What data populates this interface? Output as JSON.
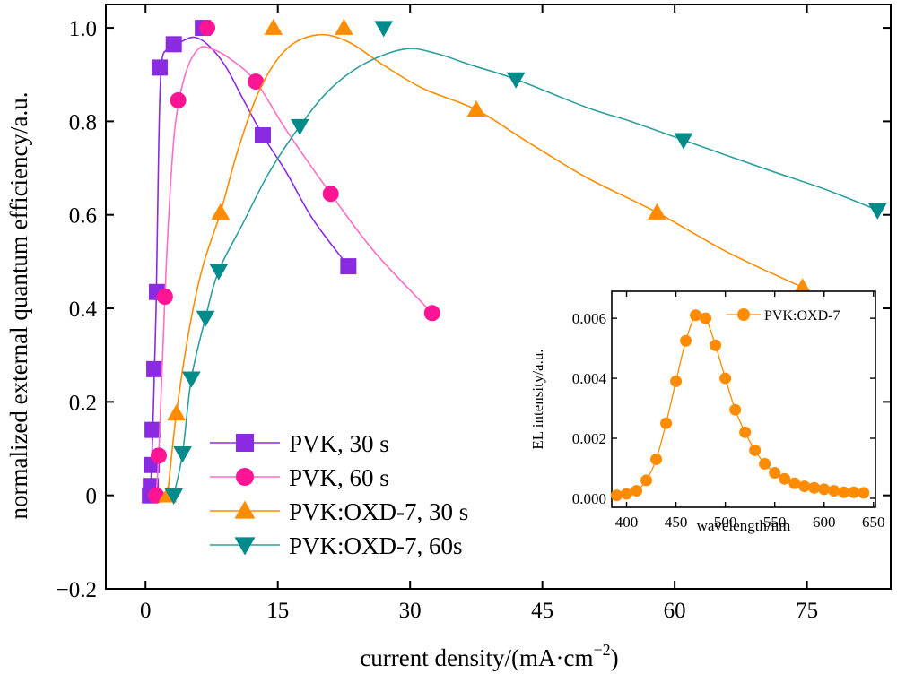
{
  "chart_data": [
    {
      "type": "line",
      "xlabel_prefix": "current density/(mA·cm",
      "xlabel_exp": "−2",
      "xlabel_suffix": ")",
      "ylabel": "normalized external quantum efficiency/a.u.",
      "xlim": [
        -4.5,
        84.5
      ],
      "ylim": [
        -0.2,
        1.05
      ],
      "x_ticks": [
        0,
        15,
        30,
        45,
        60,
        75
      ],
      "y_ticks": [
        -0.2,
        0,
        0.2,
        0.4,
        0.6,
        0.8,
        1.0
      ],
      "y_tick_labels": [
        "−0.2",
        "0",
        "0.2",
        "0.4",
        "0.6",
        "0.8",
        "1.0"
      ],
      "legend_position": "lower-left",
      "series": [
        {
          "name": "PVK, 30 s",
          "color": "#8a2be2",
          "line_color": "#8a2be2",
          "marker": "square",
          "points": [
            [
              0.5,
              0.0
            ],
            [
              0.6,
              0.02
            ],
            [
              0.7,
              0.065
            ],
            [
              0.8,
              0.14
            ],
            [
              1.0,
              0.27
            ],
            [
              1.3,
              0.435
            ],
            [
              1.6,
              0.915
            ],
            [
              3.2,
              0.965
            ],
            [
              6.5,
              1.0
            ],
            [
              13.3,
              0.77
            ],
            [
              23.0,
              0.49
            ]
          ],
          "curve": [
            [
              0.5,
              0.0
            ],
            [
              0.7,
              0.065
            ],
            [
              0.9,
              0.19
            ],
            [
              1.2,
              0.4
            ],
            [
              1.5,
              0.75
            ],
            [
              1.8,
              0.92
            ],
            [
              2.5,
              0.955
            ],
            [
              4.0,
              0.97
            ],
            [
              5.5,
              0.98
            ],
            [
              7.0,
              0.965
            ],
            [
              9.0,
              0.92
            ],
            [
              11.0,
              0.85
            ],
            [
              13.3,
              0.77
            ],
            [
              16.0,
              0.69
            ],
            [
              19.0,
              0.59
            ],
            [
              23.0,
              0.49
            ]
          ]
        },
        {
          "name": "PVK, 60 s",
          "color": "#ff1493",
          "line_color": "#ff6ec7",
          "marker": "circle",
          "points": [
            [
              1.2,
              0.0
            ],
            [
              1.5,
              0.085
            ],
            [
              2.2,
              0.425
            ],
            [
              3.7,
              0.845
            ],
            [
              7.0,
              1.0
            ],
            [
              12.5,
              0.885
            ],
            [
              21.0,
              0.645
            ],
            [
              32.5,
              0.39
            ]
          ],
          "curve": [
            [
              1.2,
              0.0
            ],
            [
              1.5,
              0.085
            ],
            [
              1.9,
              0.28
            ],
            [
              2.5,
              0.55
            ],
            [
              3.3,
              0.78
            ],
            [
              4.5,
              0.9
            ],
            [
              6.0,
              0.955
            ],
            [
              7.5,
              0.955
            ],
            [
              9.5,
              0.935
            ],
            [
              12.5,
              0.885
            ],
            [
              16.0,
              0.78
            ],
            [
              21.0,
              0.645
            ],
            [
              26.0,
              0.52
            ],
            [
              32.5,
              0.39
            ]
          ]
        },
        {
          "name": "PVK:OXD-7, 30 s",
          "color": "#ff8c00",
          "line_color": "#ff8c00",
          "marker": "triangle-up",
          "points": [
            [
              2.5,
              0.0
            ],
            [
              3.5,
              0.175
            ],
            [
              8.5,
              0.605
            ],
            [
              14.5,
              1.0
            ],
            [
              22.5,
              1.0
            ],
            [
              37.5,
              0.825
            ],
            [
              58.0,
              0.605
            ],
            [
              74.5,
              0.445
            ]
          ],
          "curve": [
            [
              2.5,
              0.0
            ],
            [
              3.5,
              0.175
            ],
            [
              5.0,
              0.36
            ],
            [
              6.5,
              0.49
            ],
            [
              8.5,
              0.605
            ],
            [
              10.5,
              0.74
            ],
            [
              13.0,
              0.87
            ],
            [
              16.0,
              0.955
            ],
            [
              19.5,
              0.985
            ],
            [
              23.0,
              0.97
            ],
            [
              27.0,
              0.92
            ],
            [
              31.5,
              0.87
            ],
            [
              37.5,
              0.825
            ],
            [
              43.0,
              0.76
            ],
            [
              50.0,
              0.68
            ],
            [
              58.0,
              0.605
            ],
            [
              66.0,
              0.52
            ],
            [
              74.5,
              0.445
            ]
          ]
        },
        {
          "name": "PVK:OXD-7, 60s",
          "color": "#008b8b",
          "line_color": "#2e9e9e",
          "marker": "triangle-down",
          "points": [
            [
              3.2,
              0.0
            ],
            [
              4.2,
              0.09
            ],
            [
              5.2,
              0.25
            ],
            [
              6.8,
              0.38
            ],
            [
              8.3,
              0.48
            ],
            [
              17.5,
              0.79
            ],
            [
              27.0,
              1.0
            ],
            [
              42.0,
              0.89
            ],
            [
              61.0,
              0.76
            ],
            [
              83.0,
              0.61
            ]
          ],
          "curve": [
            [
              3.2,
              0.0
            ],
            [
              4.2,
              0.09
            ],
            [
              5.2,
              0.25
            ],
            [
              6.8,
              0.38
            ],
            [
              8.3,
              0.48
            ],
            [
              11.0,
              0.58
            ],
            [
              14.0,
              0.69
            ],
            [
              17.5,
              0.79
            ],
            [
              21.0,
              0.87
            ],
            [
              25.0,
              0.925
            ],
            [
              29.5,
              0.955
            ],
            [
              33.0,
              0.945
            ],
            [
              37.0,
              0.92
            ],
            [
              42.0,
              0.89
            ],
            [
              50.0,
              0.83
            ],
            [
              55.0,
              0.8
            ],
            [
              61.0,
              0.76
            ],
            [
              70.0,
              0.7
            ],
            [
              77.0,
              0.655
            ],
            [
              83.0,
              0.61
            ]
          ]
        }
      ]
    },
    {
      "type": "line",
      "xlabel": "wavelength/nm",
      "ylabel": "EL intensity/a.u.",
      "xlim": [
        385,
        652
      ],
      "ylim": [
        -0.0003,
        0.0069
      ],
      "x_ticks": [
        400,
        450,
        500,
        550,
        600,
        650
      ],
      "y_ticks": [
        0.0,
        0.002,
        0.004,
        0.006
      ],
      "y_tick_labels": [
        "0.000",
        "0.002",
        "0.004",
        "0.006"
      ],
      "legend_position": "top-right",
      "series": [
        {
          "name": "PVK:OXD-7",
          "color": "#ff8c00",
          "line_color": "#ff8c00",
          "marker": "circle",
          "x": [
            390,
            400,
            410,
            420,
            430,
            440,
            450,
            460,
            470,
            480,
            490,
            500,
            510,
            520,
            530,
            540,
            550,
            560,
            570,
            580,
            590,
            600,
            610,
            620,
            630,
            640
          ],
          "y": [
            0.0001,
            0.00015,
            0.00025,
            0.0006,
            0.0013,
            0.0025,
            0.0039,
            0.00525,
            0.0061,
            0.006,
            0.0051,
            0.004,
            0.00295,
            0.0022,
            0.0016,
            0.00115,
            0.00085,
            0.00065,
            0.0005,
            0.0004,
            0.00035,
            0.0003,
            0.00025,
            0.0002,
            0.0002,
            0.00018
          ]
        }
      ]
    }
  ]
}
